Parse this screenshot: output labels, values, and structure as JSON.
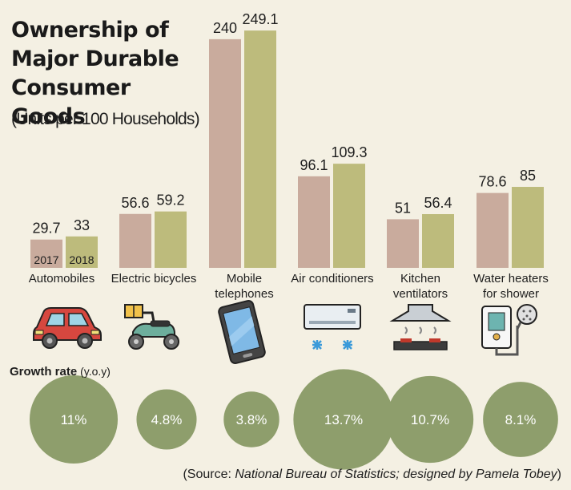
{
  "header": {
    "title_lines": [
      "Ownership of",
      "Major Durable",
      "Consumer Goods"
    ],
    "subtitle": "(Units per 100 Households)"
  },
  "colors": {
    "y2017": "#c9ab9d",
    "y2018": "#bdbb7c",
    "growth_circle": "#8e9e6c",
    "background": "#f4f0e3"
  },
  "chart_data": {
    "type": "bar",
    "title": "Ownership of Major Durable Consumer Goods",
    "subtitle": "(Units per 100 Households)",
    "categories": [
      "Automobiles",
      "Electric bicycles",
      "Mobile telephones",
      "Air conditioners",
      "Kitchen ventilators",
      "Water heaters for shower"
    ],
    "category_lines": [
      [
        "Automobiles"
      ],
      [
        "Electric bicycles"
      ],
      [
        "Mobile",
        "telephones"
      ],
      [
        "Air conditioners"
      ],
      [
        "Kitchen",
        "ventilators"
      ],
      [
        "Water heaters",
        "for shower"
      ]
    ],
    "series": [
      {
        "name": "2017",
        "values": [
          29.7,
          56.6,
          240,
          96.1,
          51,
          78.6
        ]
      },
      {
        "name": "2018",
        "values": [
          33,
          59.2,
          249.1,
          109.3,
          56.4,
          85
        ]
      }
    ],
    "value_labels": [
      [
        "29.7",
        "33"
      ],
      [
        "56.6",
        "59.2"
      ],
      [
        "240",
        "249.1"
      ],
      [
        "96.1",
        "109.3"
      ],
      [
        "51",
        "56.4"
      ],
      [
        "78.6",
        "85"
      ]
    ],
    "growth_rate": {
      "label": "Growth rate",
      "unit": "(y.o.y)",
      "values": [
        11,
        4.8,
        3.8,
        13.7,
        10.7,
        8.1
      ],
      "labels": [
        "11%",
        "4.8%",
        "3.8%",
        "13.7%",
        "10.7%",
        "8.1%"
      ]
    },
    "ylabel": "Units per 100 Households",
    "ylim": [
      0,
      250
    ]
  },
  "icons": [
    "car-icon",
    "electric-bicycle-icon",
    "mobile-phone-icon",
    "air-conditioner-icon",
    "kitchen-ventilator-icon",
    "water-heater-icon"
  ],
  "source": {
    "prefix": "(Source: ",
    "body": "National Bureau of Statistics; designed by Pamela Tobey",
    "suffix": ")"
  }
}
